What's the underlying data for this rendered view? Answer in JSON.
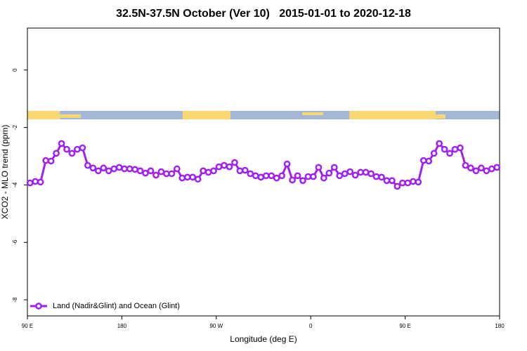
{
  "chart_data": {
    "type": "line",
    "title": "32.5N-37.5N October (Ver 10)   2015-01-01 to 2020-12-18",
    "x_label": "Longitude (deg E)",
    "y_label": "XCO2 - MLO trend (ppm)",
    "xlim": [
      90,
      540
    ],
    "xticks": [
      {
        "value": 90,
        "label": "90 E"
      },
      180,
      {
        "value": 270,
        "label": "90 W"
      },
      {
        "value": 360,
        "label": "0"
      },
      {
        "value": 450,
        "label": "90 E"
      },
      {
        "value": 540,
        "label": "180"
      }
    ],
    "ylim": [
      -8.56,
      1.46
    ],
    "yticks": [
      0,
      -2,
      -4,
      -6,
      -8
    ],
    "legend": "bottom-left",
    "x": [
      92.5,
      97.5,
      102.5,
      107.5,
      112.5,
      117.5,
      122.5,
      127.5,
      132.5,
      137.5,
      142.5,
      147.5,
      152.5,
      157.5,
      162.5,
      167.5,
      172.5,
      177.5,
      182.5,
      187.5,
      192.5,
      197.5,
      202.5,
      207.5,
      212.5,
      217.5,
      222.5,
      227.5,
      232.5,
      237.5,
      242.5,
      247.5,
      252.5,
      257.5,
      262.5,
      267.5,
      272.5,
      277.5,
      282.5,
      287.5,
      292.5,
      297.5,
      302.5,
      307.5,
      312.5,
      317.5,
      322.5,
      327.5,
      332.5,
      337.5,
      342.5,
      347.5,
      352.5,
      357.5,
      362.5,
      367.5,
      372.5,
      377.5,
      382.5,
      387.5,
      392.5,
      397.5,
      402.5,
      407.5,
      412.5,
      417.5,
      422.5,
      427.5,
      432.5,
      437.5,
      442.5,
      447.5,
      452.5,
      457.5,
      462.5,
      467.5,
      472.5,
      477.5,
      482.5,
      487.5,
      492.5,
      497.5,
      502.5,
      507.5,
      512.5,
      517.5,
      522.5,
      527.5,
      532.5,
      537.5
    ],
    "series": [
      {
        "name": "Land (Nadir&Glint) and Ocean (Glint)",
        "color": "#a020f0",
        "values": [
          -3.93,
          -3.88,
          -3.9,
          -3.15,
          -3.17,
          -2.9,
          -2.56,
          -2.76,
          -2.9,
          -2.76,
          -2.71,
          -3.32,
          -3.41,
          -3.51,
          -3.41,
          -3.51,
          -3.44,
          -3.39,
          -3.44,
          -3.44,
          -3.46,
          -3.51,
          -3.59,
          -3.51,
          -3.66,
          -3.54,
          -3.61,
          -3.61,
          -3.44,
          -3.76,
          -3.73,
          -3.73,
          -3.8,
          -3.51,
          -3.56,
          -3.51,
          -3.37,
          -3.32,
          -3.37,
          -3.22,
          -3.51,
          -3.49,
          -3.61,
          -3.68,
          -3.73,
          -3.68,
          -3.68,
          -3.76,
          -3.68,
          -3.27,
          -3.83,
          -3.68,
          -3.85,
          -3.71,
          -3.71,
          -3.39,
          -3.76,
          -3.59,
          -3.39,
          -3.68,
          -3.61,
          -3.54,
          -3.66,
          -3.56,
          -3.56,
          -3.61,
          -3.71,
          -3.73,
          -3.85,
          -3.85,
          -4.05,
          -3.93,
          -3.93,
          -3.88,
          -3.9,
          -3.15,
          -3.17,
          -2.9,
          -2.56,
          -2.76,
          -2.9,
          -2.76,
          -2.71,
          -3.32,
          -3.41,
          -3.51,
          -3.41,
          -3.51,
          -3.44,
          -3.39
        ]
      }
    ]
  }
}
